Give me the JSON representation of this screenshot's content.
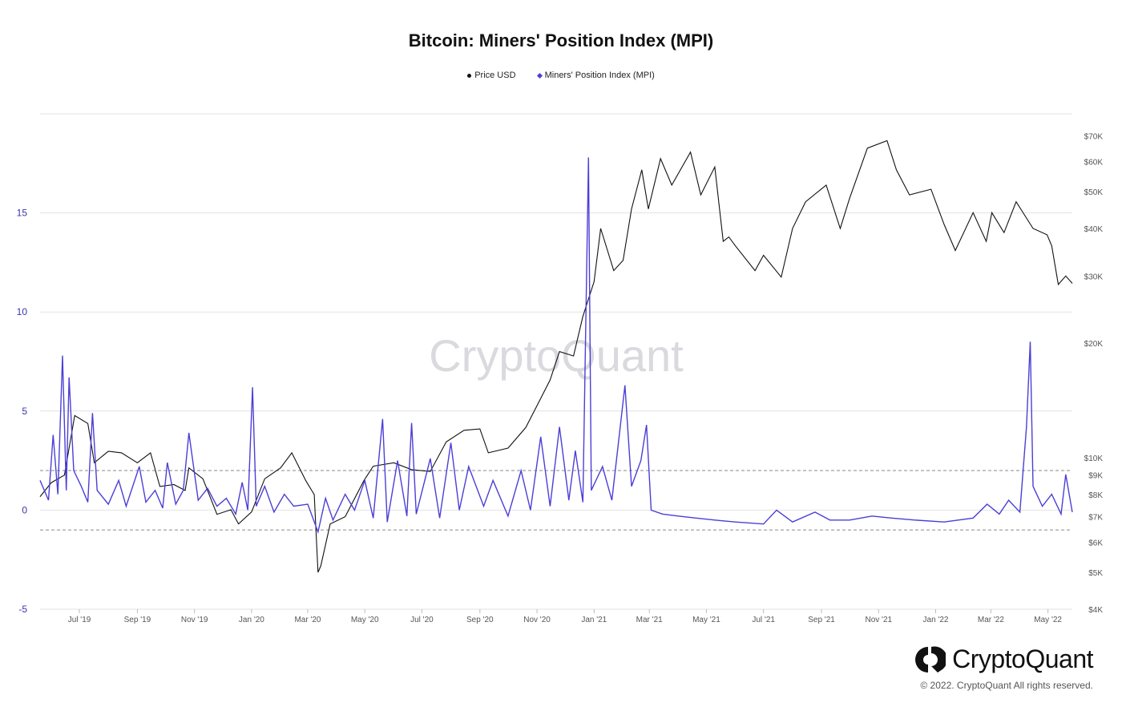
{
  "title": "Bitcoin: Miners' Position Index (MPI)",
  "legend": [
    {
      "label": "Price USD",
      "marker": "circle",
      "color": "#111111"
    },
    {
      "label": "Miners' Position Index (MPI)",
      "marker": "diamond",
      "color": "#4b3fd6"
    }
  ],
  "watermark": "CryptoQuant",
  "brand": {
    "name": "CryptoQuant",
    "icon": "cryptoquant-logo-icon"
  },
  "copyright": "© 2022. CryptoQuant All rights reserved.",
  "colors": {
    "price": "#111111",
    "mpi": "#4b3fd6",
    "grid": "#e2e2e2",
    "axis_left": "#3b35a8",
    "threshold": "#8a8a8a"
  },
  "chart_data": {
    "type": "line",
    "title": "Bitcoin: Miners' Position Index (MPI)",
    "xlabel": "",
    "x_range": [
      "2019-05-20",
      "2022-05-27"
    ],
    "x_ticks": [
      "Jul '19",
      "Sep '19",
      "Nov '19",
      "Jan '20",
      "Mar '20",
      "May '20",
      "Jul '20",
      "Sep '20",
      "Nov '20",
      "Jan '21",
      "Mar '21",
      "May '21",
      "Jul '21",
      "Sep '21",
      "Nov '21",
      "Jan '22",
      "Mar '22",
      "May '22"
    ],
    "y_left": {
      "label": "",
      "ticks": [
        "-5",
        "0",
        "5",
        "10",
        "15"
      ],
      "range": [
        -5,
        20
      ]
    },
    "y_right": {
      "label": "",
      "scale": "log",
      "ticks": [
        "$4K",
        "$5K",
        "$6K",
        "$7K",
        "$8K",
        "$9K",
        "$10K",
        "$20K",
        "$30K",
        "$40K",
        "$50K",
        "$60K",
        "$70K"
      ],
      "range": [
        4000,
        80000
      ]
    },
    "thresholds": [
      2,
      -1
    ],
    "grid": true,
    "legend_position": "top-center",
    "series": [
      {
        "name": "Price USD",
        "axis": "right",
        "points": [
          [
            "2019-05-20",
            7900
          ],
          [
            "2019-06-01",
            8600
          ],
          [
            "2019-06-15",
            9000
          ],
          [
            "2019-06-26",
            12900
          ],
          [
            "2019-07-10",
            12300
          ],
          [
            "2019-07-17",
            9700
          ],
          [
            "2019-08-01",
            10400
          ],
          [
            "2019-08-15",
            10300
          ],
          [
            "2019-09-01",
            9700
          ],
          [
            "2019-09-15",
            10300
          ],
          [
            "2019-09-25",
            8400
          ],
          [
            "2019-10-10",
            8500
          ],
          [
            "2019-10-22",
            8200
          ],
          [
            "2019-10-26",
            9400
          ],
          [
            "2019-11-10",
            8800
          ],
          [
            "2019-11-25",
            7100
          ],
          [
            "2019-12-10",
            7300
          ],
          [
            "2019-12-18",
            6700
          ],
          [
            "2020-01-01",
            7200
          ],
          [
            "2020-01-15",
            8800
          ],
          [
            "2020-02-01",
            9400
          ],
          [
            "2020-02-13",
            10300
          ],
          [
            "2020-02-28",
            8700
          ],
          [
            "2020-03-08",
            8000
          ],
          [
            "2020-03-12",
            5000
          ],
          [
            "2020-03-15",
            5200
          ],
          [
            "2020-03-25",
            6700
          ],
          [
            "2020-04-10",
            7000
          ],
          [
            "2020-04-30",
            8700
          ],
          [
            "2020-05-10",
            9500
          ],
          [
            "2020-06-01",
            9700
          ],
          [
            "2020-06-20",
            9300
          ],
          [
            "2020-07-10",
            9200
          ],
          [
            "2020-07-27",
            11000
          ],
          [
            "2020-08-15",
            11800
          ],
          [
            "2020-09-01",
            11900
          ],
          [
            "2020-09-10",
            10300
          ],
          [
            "2020-10-01",
            10600
          ],
          [
            "2020-10-20",
            12000
          ],
          [
            "2020-11-01",
            13700
          ],
          [
            "2020-11-15",
            16000
          ],
          [
            "2020-11-25",
            19000
          ],
          [
            "2020-12-10",
            18500
          ],
          [
            "2020-12-20",
            23500
          ],
          [
            "2021-01-01",
            29000
          ],
          [
            "2021-01-08",
            40000
          ],
          [
            "2021-01-22",
            31000
          ],
          [
            "2021-02-01",
            33000
          ],
          [
            "2021-02-10",
            45000
          ],
          [
            "2021-02-21",
            57000
          ],
          [
            "2021-02-28",
            45000
          ],
          [
            "2021-03-13",
            61000
          ],
          [
            "2021-03-25",
            52000
          ],
          [
            "2021-04-14",
            63500
          ],
          [
            "2021-04-25",
            49000
          ],
          [
            "2021-05-10",
            58000
          ],
          [
            "2021-05-19",
            37000
          ],
          [
            "2021-05-25",
            38000
          ],
          [
            "2021-06-01",
            36000
          ],
          [
            "2021-06-22",
            31000
          ],
          [
            "2021-07-01",
            34000
          ],
          [
            "2021-07-20",
            29800
          ],
          [
            "2021-08-01",
            40000
          ],
          [
            "2021-08-15",
            47000
          ],
          [
            "2021-09-06",
            52000
          ],
          [
            "2021-09-21",
            40000
          ],
          [
            "2021-10-01",
            48000
          ],
          [
            "2021-10-20",
            65000
          ],
          [
            "2021-11-10",
            68000
          ],
          [
            "2021-11-20",
            57000
          ],
          [
            "2021-12-04",
            49000
          ],
          [
            "2021-12-27",
            50700
          ],
          [
            "2022-01-10",
            41000
          ],
          [
            "2022-01-22",
            35000
          ],
          [
            "2022-02-10",
            44000
          ],
          [
            "2022-02-24",
            37000
          ],
          [
            "2022-03-02",
            44000
          ],
          [
            "2022-03-15",
            39000
          ],
          [
            "2022-03-28",
            47000
          ],
          [
            "2022-04-15",
            40000
          ],
          [
            "2022-04-30",
            38500
          ],
          [
            "2022-05-05",
            36000
          ],
          [
            "2022-05-12",
            28500
          ],
          [
            "2022-05-20",
            30000
          ],
          [
            "2022-05-27",
            28700
          ]
        ]
      },
      {
        "name": "Miners' Position Index (MPI)",
        "axis": "left",
        "points": [
          [
            "2019-05-20",
            1.5
          ],
          [
            "2019-05-29",
            0.5
          ],
          [
            "2019-06-03",
            3.8
          ],
          [
            "2019-06-08",
            0.8
          ],
          [
            "2019-06-13",
            7.8
          ],
          [
            "2019-06-17",
            1.0
          ],
          [
            "2019-06-20",
            6.7
          ],
          [
            "2019-06-25",
            2.0
          ],
          [
            "2019-07-03",
            1.2
          ],
          [
            "2019-07-10",
            0.4
          ],
          [
            "2019-07-15",
            4.9
          ],
          [
            "2019-07-20",
            1.0
          ],
          [
            "2019-08-01",
            0.3
          ],
          [
            "2019-08-12",
            1.5
          ],
          [
            "2019-08-20",
            0.2
          ],
          [
            "2019-09-03",
            2.2
          ],
          [
            "2019-09-10",
            0.4
          ],
          [
            "2019-09-20",
            1.0
          ],
          [
            "2019-09-28",
            0.1
          ],
          [
            "2019-10-03",
            2.4
          ],
          [
            "2019-10-12",
            0.3
          ],
          [
            "2019-10-20",
            1.0
          ],
          [
            "2019-10-26",
            3.9
          ],
          [
            "2019-11-05",
            0.5
          ],
          [
            "2019-11-15",
            1.1
          ],
          [
            "2019-11-25",
            0.2
          ],
          [
            "2019-12-05",
            0.6
          ],
          [
            "2019-12-15",
            -0.2
          ],
          [
            "2019-12-22",
            1.4
          ],
          [
            "2019-12-28",
            0.0
          ],
          [
            "2020-01-02",
            6.2
          ],
          [
            "2020-01-06",
            0.2
          ],
          [
            "2020-01-15",
            1.2
          ],
          [
            "2020-01-25",
            -0.1
          ],
          [
            "2020-02-05",
            0.8
          ],
          [
            "2020-02-15",
            0.2
          ],
          [
            "2020-03-01",
            0.3
          ],
          [
            "2020-03-12",
            -1.1
          ],
          [
            "2020-03-20",
            0.6
          ],
          [
            "2020-03-28",
            -0.5
          ],
          [
            "2020-04-10",
            0.8
          ],
          [
            "2020-04-20",
            0.0
          ],
          [
            "2020-05-01",
            1.5
          ],
          [
            "2020-05-10",
            -0.4
          ],
          [
            "2020-05-20",
            4.6
          ],
          [
            "2020-05-25",
            -0.6
          ],
          [
            "2020-06-05",
            2.5
          ],
          [
            "2020-06-15",
            -0.3
          ],
          [
            "2020-06-20",
            4.4
          ],
          [
            "2020-06-25",
            -0.2
          ],
          [
            "2020-07-10",
            2.6
          ],
          [
            "2020-07-20",
            -0.4
          ],
          [
            "2020-08-01",
            3.4
          ],
          [
            "2020-08-10",
            0.0
          ],
          [
            "2020-08-20",
            2.2
          ],
          [
            "2020-09-05",
            0.2
          ],
          [
            "2020-09-15",
            1.5
          ],
          [
            "2020-10-01",
            -0.3
          ],
          [
            "2020-10-15",
            2.0
          ],
          [
            "2020-10-25",
            0.0
          ],
          [
            "2020-11-05",
            3.7
          ],
          [
            "2020-11-15",
            0.2
          ],
          [
            "2020-11-25",
            4.2
          ],
          [
            "2020-12-05",
            0.5
          ],
          [
            "2020-12-12",
            3.0
          ],
          [
            "2020-12-20",
            0.4
          ],
          [
            "2020-12-26",
            17.8
          ],
          [
            "2020-12-29",
            1.0
          ],
          [
            "2021-01-10",
            2.2
          ],
          [
            "2021-01-20",
            0.5
          ],
          [
            "2021-02-03",
            6.3
          ],
          [
            "2021-02-10",
            1.2
          ],
          [
            "2021-02-20",
            2.5
          ],
          [
            "2021-02-26",
            4.3
          ],
          [
            "2021-03-03",
            0.0
          ],
          [
            "2021-03-15",
            -0.2
          ],
          [
            "2021-04-01",
            -0.3
          ],
          [
            "2021-04-20",
            -0.4
          ],
          [
            "2021-05-10",
            -0.5
          ],
          [
            "2021-06-01",
            -0.6
          ],
          [
            "2021-07-01",
            -0.7
          ],
          [
            "2021-07-15",
            0.0
          ],
          [
            "2021-08-01",
            -0.6
          ],
          [
            "2021-08-25",
            -0.1
          ],
          [
            "2021-09-10",
            -0.5
          ],
          [
            "2021-10-01",
            -0.5
          ],
          [
            "2021-10-25",
            -0.3
          ],
          [
            "2021-11-15",
            -0.4
          ],
          [
            "2021-12-10",
            -0.5
          ],
          [
            "2022-01-10",
            -0.6
          ],
          [
            "2022-02-10",
            -0.4
          ],
          [
            "2022-02-25",
            0.3
          ],
          [
            "2022-03-10",
            -0.2
          ],
          [
            "2022-03-20",
            0.5
          ],
          [
            "2022-04-01",
            -0.1
          ],
          [
            "2022-04-08",
            4.2
          ],
          [
            "2022-04-12",
            8.5
          ],
          [
            "2022-04-15",
            1.2
          ],
          [
            "2022-04-25",
            0.2
          ],
          [
            "2022-05-05",
            0.8
          ],
          [
            "2022-05-15",
            -0.2
          ],
          [
            "2022-05-20",
            1.8
          ],
          [
            "2022-05-27",
            -0.1
          ]
        ]
      }
    ]
  }
}
